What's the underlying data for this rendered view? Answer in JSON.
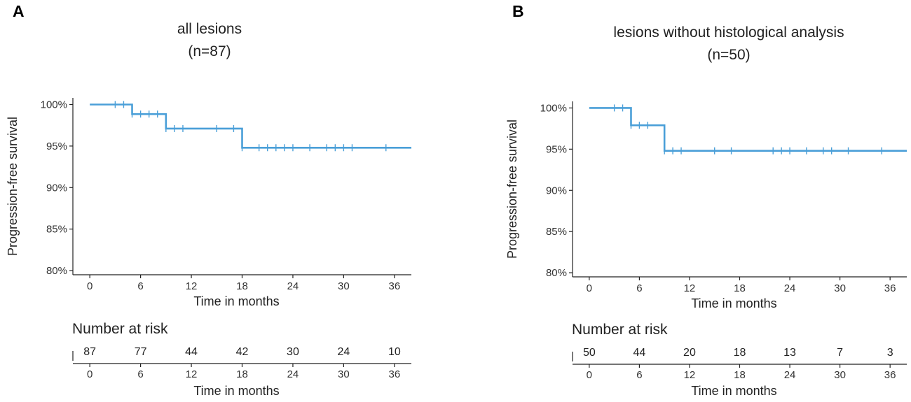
{
  "accent_color": "#4a9fd8",
  "chart_data": [
    {
      "type": "line",
      "panel": "A",
      "title": "all lesions",
      "subtitle": "(n=87)",
      "xlabel": "Time in months",
      "ylabel": "Progression-free survival",
      "xlim": [
        -2,
        38
      ],
      "ylim": [
        79.5,
        100.8
      ],
      "xticks": [
        0,
        6,
        12,
        18,
        24,
        30,
        36
      ],
      "xtick_labels": [
        "0",
        "6",
        "12",
        "18",
        "24",
        "30",
        "36"
      ],
      "yticks": [
        80,
        85,
        90,
        95,
        100
      ],
      "ytick_labels": [
        "80%",
        "85%",
        "90%",
        "95%",
        "100%"
      ],
      "series": [
        {
          "name": "all lesions",
          "step_x": [
            0,
            5,
            9,
            18,
            38
          ],
          "step_y": [
            100,
            98.85,
            97.1,
            94.8,
            94.8
          ],
          "censor_times": [
            3,
            4,
            5,
            6,
            7,
            8,
            9,
            10,
            11,
            15,
            17,
            18,
            20,
            21,
            22,
            23,
            24,
            26,
            28,
            29,
            30,
            31,
            35
          ]
        }
      ],
      "risk_table": {
        "title": "Number at risk",
        "times": [
          0,
          6,
          12,
          18,
          24,
          30,
          36
        ],
        "counts": [
          "87",
          "77",
          "44",
          "42",
          "30",
          "24",
          "10"
        ],
        "xlabel": "Time in months"
      }
    },
    {
      "type": "line",
      "panel": "B",
      "title": "lesions without histological analysis",
      "subtitle": "(n=50)",
      "xlabel": "Time in months",
      "ylabel": "Progression-free survival",
      "xlim": [
        -2,
        38
      ],
      "ylim": [
        79.5,
        100.8
      ],
      "xticks": [
        0,
        6,
        12,
        18,
        24,
        30,
        36
      ],
      "xtick_labels": [
        "0",
        "6",
        "12",
        "18",
        "24",
        "30",
        "36"
      ],
      "yticks": [
        80,
        85,
        90,
        95,
        100
      ],
      "ytick_labels": [
        "80%",
        "85%",
        "90%",
        "95%",
        "100%"
      ],
      "series": [
        {
          "name": "lesions without histological analysis",
          "step_x": [
            0,
            5,
            9,
            38
          ],
          "step_y": [
            100,
            97.9,
            94.8,
            94.8
          ],
          "censor_times": [
            3,
            4,
            5,
            6,
            7,
            9,
            10,
            11,
            15,
            17,
            22,
            23,
            24,
            26,
            28,
            29,
            31,
            35
          ]
        }
      ],
      "risk_table": {
        "title": "Number at risk",
        "times": [
          0,
          6,
          12,
          18,
          24,
          30,
          36
        ],
        "counts": [
          "50",
          "44",
          "20",
          "18",
          "13",
          "7",
          "3"
        ],
        "xlabel": "Time in months"
      }
    }
  ]
}
